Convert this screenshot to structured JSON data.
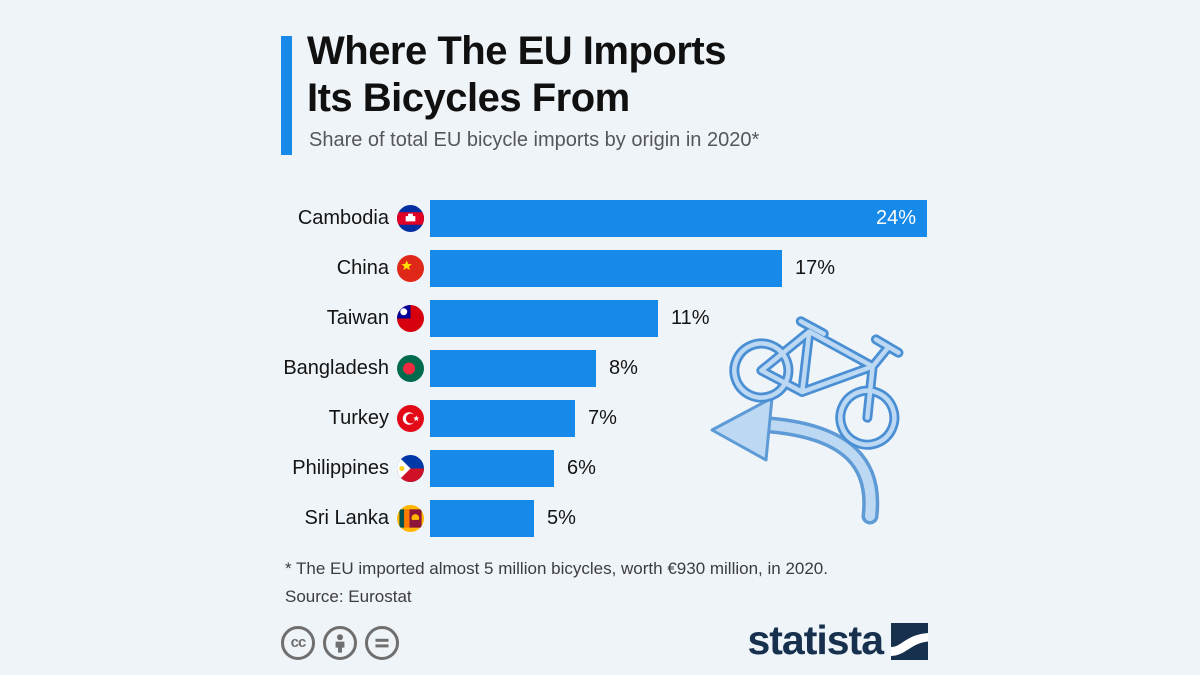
{
  "page": {
    "background": "#eff4f9"
  },
  "header": {
    "title_line1": "Where The EU Imports",
    "title_line2": "Its Bicycles From",
    "subtitle": "Share of total EU bicycle imports by origin in 2020*",
    "accent_color": "#1789e8"
  },
  "chart_data": {
    "type": "bar",
    "orientation": "horizontal",
    "title": "Where The EU Imports Its Bicycles From",
    "unit": "%",
    "xlim": [
      0,
      24
    ],
    "grid": false,
    "legend": false,
    "categories": [
      "Cambodia",
      "China",
      "Taiwan",
      "Bangladesh",
      "Turkey",
      "Philippines",
      "Sri Lanka"
    ],
    "values": [
      24,
      17,
      11,
      8,
      7,
      6,
      5
    ],
    "value_labels": [
      "24%",
      "17%",
      "11%",
      "8%",
      "7%",
      "6%",
      "5%"
    ],
    "flag_icons": [
      "cambodia-flag-icon",
      "china-flag-icon",
      "taiwan-flag-icon",
      "bangladesh-flag-icon",
      "turkey-flag-icon",
      "philippines-flag-icon",
      "sri-lanka-flag-icon"
    ],
    "bar_color": "#1789e8",
    "max_value_label_inside": true
  },
  "illustration": {
    "name": "bicycle-with-curved-arrow"
  },
  "footer": {
    "footnote": "* The EU imported almost 5 million bicycles, worth €930 million, in 2020.",
    "source": "Source: Eurostat",
    "license_icons": [
      "cc-icon",
      "cc-by-person-icon",
      "cc-nd-equals-icon"
    ],
    "brand": "statista"
  }
}
